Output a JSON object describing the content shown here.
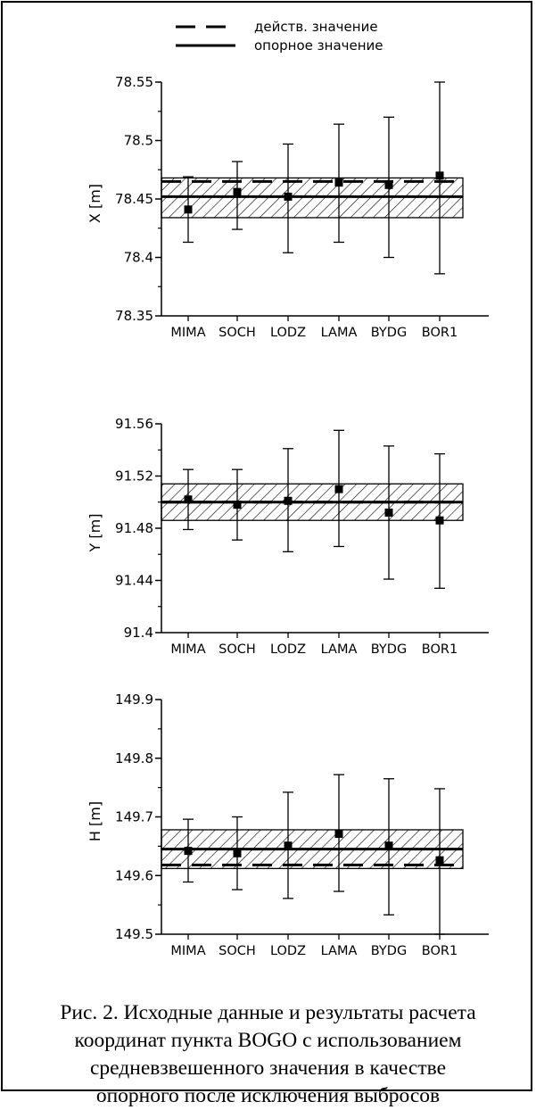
{
  "legend": {
    "items": [
      {
        "label": "действ. значение",
        "style": "dashed"
      },
      {
        "label": "опорное значение",
        "style": "solid"
      }
    ]
  },
  "caption": {
    "lines": [
      "Рис. 2. Исходные данные и результаты расчета",
      "координат пункта BOGO с использованием",
      "средневзвешенного значения в качестве",
      "опорного после исключения выбросов"
    ]
  },
  "chart_data": [
    {
      "type": "scatter",
      "ylabel": "X [m]",
      "categories": [
        "MIMA",
        "SOCH",
        "LODZ",
        "LAMA",
        "BYDG",
        "BOR1"
      ],
      "values": [
        78.441,
        78.456,
        78.452,
        78.464,
        78.462,
        78.47
      ],
      "err_low": [
        78.413,
        78.424,
        78.404,
        78.413,
        78.4,
        78.386
      ],
      "err_high": [
        78.469,
        78.482,
        78.497,
        78.514,
        78.52,
        78.55
      ],
      "reference": 78.452,
      "actual": 78.465,
      "band": [
        78.434,
        78.468
      ],
      "ylim": [
        78.35,
        78.55
      ],
      "yticks": [
        78.35,
        78.4,
        78.45,
        78.5,
        78.55
      ],
      "yticklabels": [
        "78.35",
        "78.4",
        "78.45",
        "78.5",
        "78.55"
      ]
    },
    {
      "type": "scatter",
      "ylabel": "Y [m]",
      "categories": [
        "MIMA",
        "SOCH",
        "LODZ",
        "LAMA",
        "BYDG",
        "BOR1"
      ],
      "values": [
        91.502,
        91.498,
        91.501,
        91.51,
        91.492,
        91.486
      ],
      "err_low": [
        91.479,
        91.471,
        91.462,
        91.466,
        91.441,
        91.434
      ],
      "err_high": [
        91.525,
        91.525,
        91.541,
        91.555,
        91.543,
        91.537
      ],
      "reference": 91.5,
      "actual": 91.5,
      "band": [
        91.486,
        91.514
      ],
      "ylim": [
        91.4,
        91.56
      ],
      "yticks": [
        91.4,
        91.44,
        91.48,
        91.52,
        91.56
      ],
      "yticklabels": [
        "91.4",
        "91.44",
        "91.48",
        "91.52",
        "91.56"
      ]
    },
    {
      "type": "scatter",
      "ylabel": "H [m]",
      "categories": [
        "MIMA",
        "SOCH",
        "LODZ",
        "LAMA",
        "BYDG",
        "BOR1"
      ],
      "values": [
        149.642,
        149.638,
        149.651,
        149.671,
        149.651,
        149.626
      ],
      "err_low": [
        149.589,
        149.576,
        149.561,
        149.573,
        149.533,
        149.5
      ],
      "err_high": [
        149.696,
        149.7,
        149.742,
        149.772,
        149.765,
        149.748
      ],
      "reference": 149.645,
      "actual": 149.618,
      "band": [
        149.612,
        149.678
      ],
      "ylim": [
        149.5,
        149.9
      ],
      "yticks": [
        149.5,
        149.6,
        149.7,
        149.8,
        149.9
      ],
      "yticklabels": [
        "149.5",
        "149.6",
        "149.7",
        "149.8",
        "149.9"
      ]
    }
  ]
}
